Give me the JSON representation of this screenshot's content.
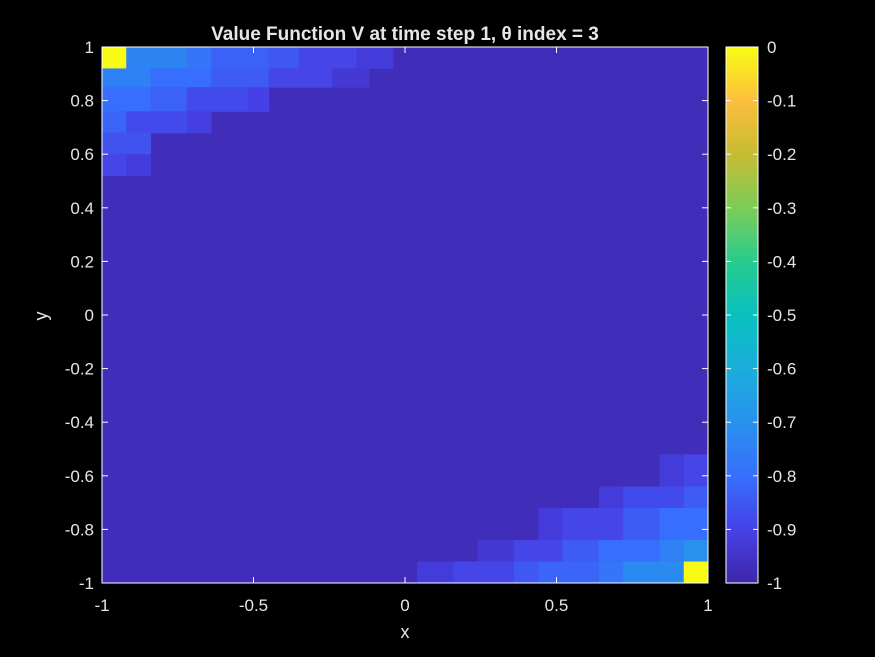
{
  "chart_data": {
    "type": "heatmap",
    "title": "Value Function V at time step 1, θ index = 3",
    "xlabel": "x",
    "ylabel": "y",
    "xlim": [
      -1,
      1
    ],
    "ylim": [
      -1,
      1
    ],
    "clim": [
      -1,
      0
    ],
    "colormap": "parula",
    "background_value": -0.97,
    "xticks": [
      -1,
      -0.5,
      0,
      0.5,
      1
    ],
    "xtick_labels": [
      "-1",
      "-0.5",
      "0",
      "0.5",
      "1"
    ],
    "yticks": [
      1,
      0.8,
      0.6,
      0.4,
      0.2,
      0,
      -0.2,
      -0.4,
      -0.6,
      -0.8,
      -1
    ],
    "ytick_labels": [
      "1",
      "0.8",
      "0.6",
      "0.4",
      "0.2",
      "0",
      "-0.2",
      "-0.4",
      "-0.6",
      "-0.8",
      "-1"
    ],
    "colorbar_ticks": [
      0,
      -0.1,
      -0.2,
      -0.3,
      -0.4,
      -0.5,
      -0.6,
      -0.7,
      -0.8,
      -0.9,
      -1
    ],
    "colorbar_tick_labels": [
      "0",
      "-0.1",
      "-0.2",
      "-0.3",
      "-0.4",
      "-0.5",
      "-0.6",
      "-0.7",
      "-0.8",
      "-0.9",
      "-1"
    ],
    "cells": [
      {
        "x": [
          -1,
          -0.92
        ],
        "y": [
          0.92,
          1
        ],
        "v": 0
      },
      {
        "x": [
          -0.92,
          -0.72
        ],
        "y": [
          0.92,
          1
        ],
        "v": -0.74
      },
      {
        "x": [
          -0.72,
          -0.64
        ],
        "y": [
          0.92,
          1
        ],
        "v": -0.78
      },
      {
        "x": [
          -0.64,
          -0.45
        ],
        "y": [
          0.92,
          1
        ],
        "v": -0.83
      },
      {
        "x": [
          -0.45,
          -0.35
        ],
        "y": [
          0.92,
          1
        ],
        "v": -0.85
      },
      {
        "x": [
          -0.35,
          -0.16
        ],
        "y": [
          0.92,
          1
        ],
        "v": -0.89
      },
      {
        "x": [
          -0.16,
          -0.04
        ],
        "y": [
          0.92,
          1
        ],
        "v": -0.92
      },
      {
        "x": [
          -1,
          -0.84
        ],
        "y": [
          0.85,
          0.92
        ],
        "v": -0.75
      },
      {
        "x": [
          -0.84,
          -0.64
        ],
        "y": [
          0.85,
          0.92
        ],
        "v": -0.8
      },
      {
        "x": [
          -0.64,
          -0.45
        ],
        "y": [
          0.85,
          0.92
        ],
        "v": -0.84
      },
      {
        "x": [
          -0.45,
          -0.24
        ],
        "y": [
          0.85,
          0.92
        ],
        "v": -0.89
      },
      {
        "x": [
          -0.24,
          -0.12
        ],
        "y": [
          0.85,
          0.92
        ],
        "v": -0.93
      },
      {
        "x": [
          -1,
          -0.84
        ],
        "y": [
          0.76,
          0.85
        ],
        "v": -0.8
      },
      {
        "x": [
          -0.84,
          -0.72
        ],
        "y": [
          0.76,
          0.85
        ],
        "v": -0.83
      },
      {
        "x": [
          -0.72,
          -0.52
        ],
        "y": [
          0.76,
          0.85
        ],
        "v": -0.88
      },
      {
        "x": [
          -0.52,
          -0.45
        ],
        "y": [
          0.76,
          0.85
        ],
        "v": -0.9
      },
      {
        "x": [
          -1,
          -0.92
        ],
        "y": [
          0.68,
          0.76
        ],
        "v": -0.82
      },
      {
        "x": [
          -0.92,
          -0.72
        ],
        "y": [
          0.68,
          0.76
        ],
        "v": -0.88
      },
      {
        "x": [
          -0.72,
          -0.64
        ],
        "y": [
          0.68,
          0.76
        ],
        "v": -0.91
      },
      {
        "x": [
          -1,
          -0.84
        ],
        "y": [
          0.6,
          0.68
        ],
        "v": -0.86
      },
      {
        "x": [
          -1,
          -0.92
        ],
        "y": [
          0.52,
          0.6
        ],
        "v": -0.89
      },
      {
        "x": [
          -0.92,
          -0.84
        ],
        "y": [
          0.52,
          0.6
        ],
        "v": -0.92
      },
      {
        "x": [
          0.84,
          0.92
        ],
        "y": [
          -0.64,
          -0.52
        ],
        "v": -0.92
      },
      {
        "x": [
          0.92,
          1
        ],
        "y": [
          -0.64,
          -0.52
        ],
        "v": -0.89
      },
      {
        "x": [
          0.64,
          0.72
        ],
        "y": [
          -0.72,
          -0.64
        ],
        "v": -0.92
      },
      {
        "x": [
          0.72,
          0.92
        ],
        "y": [
          -0.72,
          -0.64
        ],
        "v": -0.88
      },
      {
        "x": [
          0.92,
          1
        ],
        "y": [
          -0.72,
          -0.64
        ],
        "v": -0.84
      },
      {
        "x": [
          0.44,
          0.52
        ],
        "y": [
          -0.84,
          -0.72
        ],
        "v": -0.92
      },
      {
        "x": [
          0.52,
          0.72
        ],
        "y": [
          -0.84,
          -0.72
        ],
        "v": -0.89
      },
      {
        "x": [
          0.72,
          0.84
        ],
        "y": [
          -0.84,
          -0.72
        ],
        "v": -0.84
      },
      {
        "x": [
          0.84,
          1
        ],
        "y": [
          -0.84,
          -0.72
        ],
        "v": -0.8
      },
      {
        "x": [
          0.24,
          0.36
        ],
        "y": [
          -0.92,
          -0.84
        ],
        "v": -0.93
      },
      {
        "x": [
          0.36,
          0.52
        ],
        "y": [
          -0.92,
          -0.84
        ],
        "v": -0.89
      },
      {
        "x": [
          0.52,
          0.64
        ],
        "y": [
          -0.92,
          -0.84
        ],
        "v": -0.84
      },
      {
        "x": [
          0.64,
          0.84
        ],
        "y": [
          -0.92,
          -0.84
        ],
        "v": -0.8
      },
      {
        "x": [
          0.84,
          0.92
        ],
        "y": [
          -0.92,
          -0.84
        ],
        "v": -0.75
      },
      {
        "x": [
          0.92,
          1
        ],
        "y": [
          -0.92,
          -0.84
        ],
        "v": -0.7
      },
      {
        "x": [
          0.04,
          0.16
        ],
        "y": [
          -1,
          -0.92
        ],
        "v": -0.92
      },
      {
        "x": [
          0.16,
          0.36
        ],
        "y": [
          -1,
          -0.92
        ],
        "v": -0.89
      },
      {
        "x": [
          0.36,
          0.44
        ],
        "y": [
          -1,
          -0.92
        ],
        "v": -0.85
      },
      {
        "x": [
          0.44,
          0.64
        ],
        "y": [
          -1,
          -0.92
        ],
        "v": -0.82
      },
      {
        "x": [
          0.64,
          0.72
        ],
        "y": [
          -1,
          -0.92
        ],
        "v": -0.78
      },
      {
        "x": [
          0.72,
          0.92
        ],
        "y": [
          -1,
          -0.92
        ],
        "v": -0.72
      },
      {
        "x": [
          0.92,
          1
        ],
        "y": [
          -1,
          -0.92
        ],
        "v": 0
      }
    ]
  }
}
